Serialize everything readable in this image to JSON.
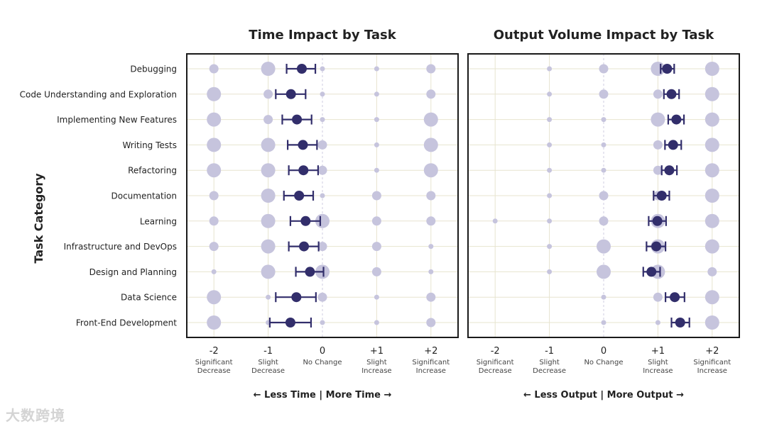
{
  "page": {
    "y_axis_title": "Task Category",
    "watermark": "大数跨境"
  },
  "chart_data": [
    {
      "type": "scatter",
      "title": "Time Impact by Task",
      "ylabel": "Task Category",
      "categories": [
        "Debugging",
        "Code Understanding and Exploration",
        "Implementing New Features",
        "Writing Tests",
        "Refactoring",
        "Documentation",
        "Learning",
        "Infrastructure and DevOps",
        "Design and Planning",
        "Data Science",
        "Front-End Development"
      ],
      "xlim": [
        -2.5,
        2.5
      ],
      "x_ticks": [
        {
          "value": -2,
          "label": "-2",
          "sublabel": [
            "Significant",
            "Decrease"
          ]
        },
        {
          "value": -1,
          "label": "-1",
          "sublabel": [
            "Slight",
            "Decrease"
          ]
        },
        {
          "value": 0,
          "label": "0",
          "sublabel": [
            "No Change"
          ]
        },
        {
          "value": 1,
          "label": "+1",
          "sublabel": [
            "Slight",
            "Increase"
          ]
        },
        {
          "value": 2,
          "label": "+2",
          "sublabel": [
            "Significant",
            "Increase"
          ]
        }
      ],
      "distribution_levels": [
        -2,
        -1,
        0,
        1,
        2
      ],
      "distribution_sizes": [
        [
          2,
          3,
          1,
          1,
          2
        ],
        [
          3,
          2,
          1,
          1,
          2
        ],
        [
          3,
          2,
          1,
          1,
          3
        ],
        [
          3,
          3,
          2,
          1,
          3
        ],
        [
          3,
          3,
          2,
          1,
          3
        ],
        [
          2,
          3,
          1,
          2,
          2
        ],
        [
          2,
          3,
          3,
          2,
          2
        ],
        [
          2,
          3,
          2,
          2,
          1
        ],
        [
          1,
          3,
          3,
          2,
          1
        ],
        [
          3,
          1,
          2,
          1,
          2
        ],
        [
          3,
          1,
          1,
          1,
          2
        ]
      ],
      "means": [
        -0.38,
        -0.58,
        -0.47,
        -0.36,
        -0.35,
        -0.43,
        -0.31,
        -0.34,
        -0.23,
        -0.48,
        -0.59
      ],
      "ci_low": [
        -0.66,
        -0.86,
        -0.74,
        -0.64,
        -0.62,
        -0.71,
        -0.59,
        -0.62,
        -0.49,
        -0.86,
        -0.97
      ],
      "ci_high": [
        -0.13,
        -0.31,
        -0.2,
        -0.1,
        -0.08,
        -0.17,
        -0.04,
        -0.07,
        0.02,
        -0.12,
        -0.21
      ],
      "direction_label": "← Less Time | More Time →"
    },
    {
      "type": "scatter",
      "title": "Output Volume Impact by Task",
      "categories": [
        "Debugging",
        "Code Understanding and Exploration",
        "Implementing New Features",
        "Writing Tests",
        "Refactoring",
        "Documentation",
        "Learning",
        "Infrastructure and DevOps",
        "Design and Planning",
        "Data Science",
        "Front-End Development"
      ],
      "xlim": [
        -2.5,
        2.5
      ],
      "x_ticks": [
        {
          "value": -2,
          "label": "-2",
          "sublabel": [
            "Significant",
            "Decrease"
          ]
        },
        {
          "value": -1,
          "label": "-1",
          "sublabel": [
            "Slight",
            "Decrease"
          ]
        },
        {
          "value": 0,
          "label": "0",
          "sublabel": [
            "No Change"
          ]
        },
        {
          "value": 1,
          "label": "+1",
          "sublabel": [
            "Slight",
            "Increase"
          ]
        },
        {
          "value": 2,
          "label": "+2",
          "sublabel": [
            "Significant",
            "Increase"
          ]
        }
      ],
      "distribution_levels": [
        -2,
        -1,
        0,
        1,
        2
      ],
      "distribution_sizes": [
        [
          0,
          1,
          2,
          3,
          3
        ],
        [
          0,
          1,
          2,
          2,
          3
        ],
        [
          0,
          1,
          1,
          3,
          3
        ],
        [
          0,
          1,
          1,
          2,
          3
        ],
        [
          0,
          1,
          1,
          2,
          3
        ],
        [
          0,
          1,
          2,
          2,
          3
        ],
        [
          1,
          1,
          2,
          3,
          3
        ],
        [
          0,
          1,
          3,
          3,
          3
        ],
        [
          0,
          1,
          3,
          3,
          2
        ],
        [
          0,
          0,
          1,
          2,
          3
        ],
        [
          0,
          0,
          1,
          1,
          3
        ]
      ],
      "means": [
        1.17,
        1.25,
        1.34,
        1.28,
        1.21,
        1.07,
        0.99,
        0.97,
        0.88,
        1.31,
        1.41
      ],
      "ci_low": [
        1.05,
        1.11,
        1.19,
        1.13,
        1.07,
        0.92,
        0.83,
        0.79,
        0.73,
        1.14,
        1.25
      ],
      "ci_high": [
        1.3,
        1.39,
        1.48,
        1.43,
        1.35,
        1.21,
        1.15,
        1.14,
        1.04,
        1.49,
        1.58
      ],
      "direction_label": "← Less Output | More Output →"
    }
  ],
  "colors": {
    "mark": "#322e6b",
    "dist": "#c6c4dd",
    "grid": "#e7e4cf",
    "zero_line": "#cfcde0",
    "frame": "#1a1a1a",
    "text": "#222222",
    "subtext": "#444444"
  }
}
